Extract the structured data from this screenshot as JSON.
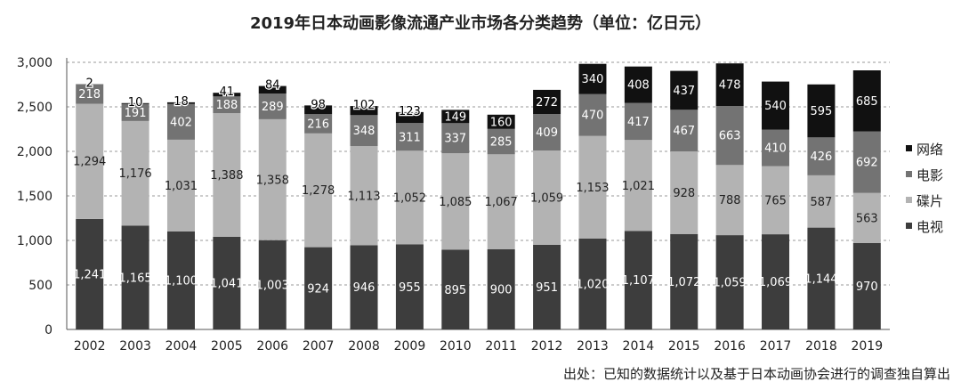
{
  "title": "2019年日本动画影像流通产业市场各分类趋势（单位：亿日元）",
  "source": "出处：已知的数据统计以及基于日本动画协会进行的调查独自算出",
  "chart_data": {
    "type": "bar",
    "stacked": true,
    "title": "2019年日本动画影像流通产业市场各分类趋势（单位：亿日元）",
    "categories": [
      "2002",
      "2003",
      "2004",
      "2005",
      "2006",
      "2007",
      "2008",
      "2009",
      "2010",
      "2011",
      "2012",
      "2013",
      "2014",
      "2015",
      "2016",
      "2017",
      "2018",
      "2019"
    ],
    "series": [
      {
        "name": "电视",
        "color": "#3d3d3d",
        "label_color": "#ffffff",
        "values": [
          1241,
          1165,
          1100,
          1041,
          1003,
          924,
          946,
          955,
          895,
          900,
          951,
          1020,
          1107,
          1072,
          1059,
          1069,
          1144,
          970
        ],
        "labels": [
          "1,241",
          "1,165",
          "1,100",
          "1,041",
          "1,003",
          "924",
          "946",
          "955",
          "895",
          "900",
          "951",
          "1,020",
          "1,107",
          "1,072",
          "1,059",
          "1,069",
          "1,144",
          "970"
        ]
      },
      {
        "name": "碟片",
        "color": "#b3b3b3",
        "label_color": "#222222",
        "values": [
          1294,
          1176,
          1031,
          1388,
          1358,
          1278,
          1113,
          1052,
          1085,
          1067,
          1059,
          1153,
          1021,
          928,
          788,
          765,
          587,
          563
        ],
        "labels": [
          "1,294",
          "1,176",
          "1,031",
          "1,388",
          "1,358",
          "1,278",
          "1,113",
          "1,052",
          "1,085",
          "1,067",
          "1,059",
          "1,153",
          "1,021",
          "928",
          "788",
          "765",
          "587",
          "563"
        ]
      },
      {
        "name": "电影",
        "color": "#737373",
        "label_color": "#ffffff",
        "values": [
          218,
          191,
          402,
          188,
          289,
          216,
          348,
          311,
          337,
          285,
          409,
          470,
          417,
          467,
          663,
          410,
          426,
          692
        ],
        "labels": [
          "218",
          "191",
          "402",
          "188",
          "289",
          "216",
          "348",
          "311",
          "337",
          "285",
          "409",
          "470",
          "417",
          "467",
          "663",
          "410",
          "426",
          "692"
        ]
      },
      {
        "name": "网络",
        "color": "#111111",
        "label_color": "#ffffff",
        "values": [
          2,
          10,
          18,
          41,
          84,
          98,
          102,
          123,
          149,
          160,
          272,
          340,
          408,
          437,
          478,
          540,
          595,
          685
        ],
        "labels": [
          "2",
          "10",
          "18",
          "41",
          "84",
          "98",
          "102",
          "123",
          "149",
          "160",
          "272",
          "340",
          "408",
          "437",
          "478",
          "540",
          "595",
          "685"
        ]
      }
    ],
    "legend_order": [
      "网络",
      "电影",
      "碟片",
      "电视"
    ],
    "ylim": [
      0,
      3000
    ],
    "yticks": [
      0,
      500,
      1000,
      1500,
      2000,
      2500,
      3000
    ],
    "ytick_labels": [
      "0",
      "500",
      "1,000",
      "1,500",
      "2,000",
      "2,500",
      "3,000"
    ],
    "grid": true,
    "legend_position": "right"
  }
}
